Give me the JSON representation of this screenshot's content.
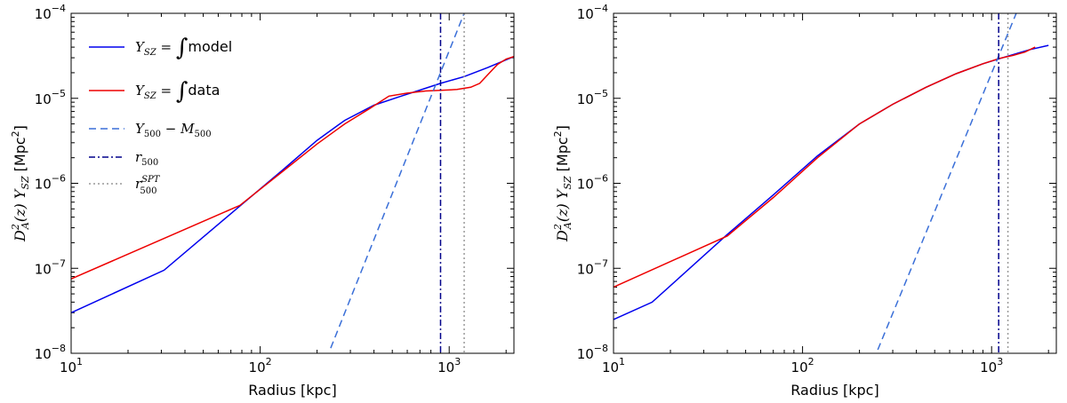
{
  "chart_data": [
    {
      "type": "line",
      "xlabel": "Radius [kpc]",
      "ylabel": "D_A^2(z) Y_SZ [Mpc^2]",
      "xscale": "log",
      "yscale": "log",
      "xlim": [
        10,
        2200
      ],
      "ylim": [
        1e-08,
        0.0001
      ],
      "x_ticks": [
        {
          "value": 10,
          "label": "10^1"
        },
        {
          "value": 100,
          "label": "10^2"
        },
        {
          "value": 1000,
          "label": "10^3"
        }
      ],
      "y_ticks": [
        {
          "value": 1e-08,
          "label": "10^-8"
        },
        {
          "value": 1e-07,
          "label": "10^-7"
        },
        {
          "value": 1e-06,
          "label": "10^-6"
        },
        {
          "value": 1e-05,
          "label": "10^-5"
        },
        {
          "value": 0.0001,
          "label": "10^-4"
        }
      ],
      "legend": "top-left",
      "series": [
        {
          "name": "Y_SZ = ∫model",
          "color": "#0000ee",
          "style": "solid",
          "x": [
            10,
            31,
            75,
            130,
            200,
            280,
            400,
            550,
            700,
            900,
            1200,
            1600,
            2200
          ],
          "y": [
            3e-08,
            9.5e-08,
            5e-07,
            1.4e-06,
            3.2e-06,
            5.5e-06,
            8.3e-06,
            1.05e-05,
            1.25e-05,
            1.5e-05,
            1.8e-05,
            2.3e-05,
            3.1e-05
          ]
        },
        {
          "name": "Y_SZ = ∫data",
          "color": "#ee0000",
          "style": "solid",
          "x": [
            10,
            78,
            130,
            200,
            280,
            380,
            480,
            600,
            750,
            900,
            1100,
            1300,
            1450,
            1600,
            1800,
            2000,
            2200
          ],
          "y": [
            7.5e-08,
            5.5e-07,
            1.35e-06,
            2.9e-06,
            5e-06,
            7.6e-06,
            1.06e-05,
            1.15e-05,
            1.22e-05,
            1.24e-05,
            1.27e-05,
            1.35e-05,
            1.5e-05,
            1.9e-05,
            2.5e-05,
            2.9e-05,
            3.1e-05
          ]
        },
        {
          "name": "Y_500 − M_500",
          "color": "#3a6fd8",
          "style": "dashed",
          "x": [
            236,
            1200
          ],
          "y": [
            1.15e-08,
            0.0001
          ]
        },
        {
          "name": "r_500",
          "color": "#00008b",
          "style": "dashdot",
          "vertical_at": 900
        },
        {
          "name": "r_500^SPT",
          "color": "#999999",
          "style": "dotted",
          "vertical_at": 1200
        }
      ]
    },
    {
      "type": "line",
      "xlabel": "Radius [kpc]",
      "ylabel": "D_A^2(z) Y_SZ [Mpc^2]",
      "xscale": "log",
      "yscale": "log",
      "xlim": [
        10,
        2200
      ],
      "ylim": [
        1e-08,
        0.0001
      ],
      "x_ticks": [
        {
          "value": 10,
          "label": "10^1"
        },
        {
          "value": 100,
          "label": "10^2"
        },
        {
          "value": 1000,
          "label": "10^3"
        }
      ],
      "y_ticks": [
        {
          "value": 1e-08,
          "label": "10^-8"
        },
        {
          "value": 1e-07,
          "label": "10^-7"
        },
        {
          "value": 1e-06,
          "label": "10^-6"
        },
        {
          "value": 1e-05,
          "label": "10^-5"
        },
        {
          "value": 0.0001,
          "label": "10^-4"
        }
      ],
      "series": [
        {
          "name": "Y_SZ = ∫model",
          "color": "#0000ee",
          "style": "solid",
          "x": [
            10,
            16,
            40,
            70,
            120,
            200,
            300,
            450,
            650,
            900,
            1200,
            1600,
            2000
          ],
          "y": [
            2.5e-08,
            4e-08,
            2.5e-07,
            7.3e-07,
            2.1e-06,
            5e-06,
            8.5e-06,
            1.35e-05,
            1.95e-05,
            2.55e-05,
            3.1e-05,
            3.75e-05,
            4.2e-05
          ]
        },
        {
          "name": "Y_SZ = ∫data",
          "color": "#ee0000",
          "style": "solid",
          "x": [
            10,
            40,
            70,
            120,
            200,
            300,
            450,
            650,
            900,
            1100,
            1300,
            1500,
            1700
          ],
          "y": [
            6e-08,
            2.4e-07,
            6.8e-07,
            2e-06,
            5e-06,
            8.5e-06,
            1.35e-05,
            1.95e-05,
            2.55e-05,
            2.95e-05,
            3.2e-05,
            3.5e-05,
            4e-05
          ]
        },
        {
          "name": "Y_500 − M_500",
          "color": "#3a6fd8",
          "style": "dashed",
          "x": [
            250,
            1350
          ],
          "y": [
            1.1e-08,
            0.0001
          ]
        },
        {
          "name": "r_500",
          "color": "#00008b",
          "style": "dashdot",
          "vertical_at": 1090
        },
        {
          "name": "r_500^SPT",
          "color": "#999999",
          "style": "dotted",
          "vertical_at": 1220
        }
      ]
    }
  ]
}
